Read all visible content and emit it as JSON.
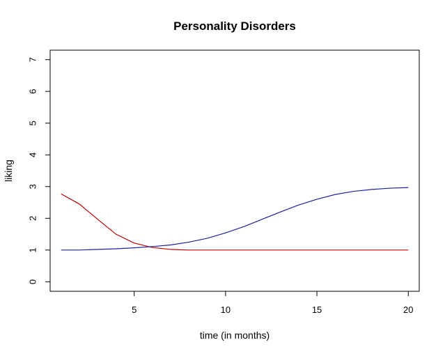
{
  "chart_data": {
    "type": "line",
    "title": "Personality Disorders",
    "xlabel": "time (in months)",
    "ylabel": "liking",
    "xlim": [
      0.4,
      20.6
    ],
    "ylim": [
      -0.3,
      7.3
    ],
    "xticks": [
      5,
      10,
      15,
      20
    ],
    "yticks": [
      0,
      1,
      2,
      3,
      4,
      5,
      6,
      7
    ],
    "grid": false,
    "series": [
      {
        "color": "#c00000",
        "x": [
          1,
          2,
          3,
          4,
          5,
          6,
          7,
          8,
          9,
          10,
          11,
          12,
          13,
          14,
          15,
          16,
          17,
          18,
          19,
          20
        ],
        "y": [
          2.77,
          2.45,
          1.97,
          1.5,
          1.22,
          1.08,
          1.02,
          1.0,
          1.0,
          1.0,
          1.0,
          1.0,
          1.0,
          1.0,
          1.0,
          1.0,
          1.0,
          1.0,
          1.0,
          1.0
        ]
      },
      {
        "color": "#2020a0",
        "x": [
          1,
          2,
          3,
          4,
          5,
          6,
          7,
          8,
          9,
          10,
          11,
          12,
          13,
          14,
          15,
          16,
          17,
          18,
          19,
          20
        ],
        "y": [
          1.0,
          1.0,
          1.02,
          1.04,
          1.07,
          1.11,
          1.16,
          1.25,
          1.37,
          1.54,
          1.74,
          1.97,
          2.2,
          2.42,
          2.6,
          2.75,
          2.85,
          2.91,
          2.95,
          2.97
        ]
      }
    ]
  }
}
